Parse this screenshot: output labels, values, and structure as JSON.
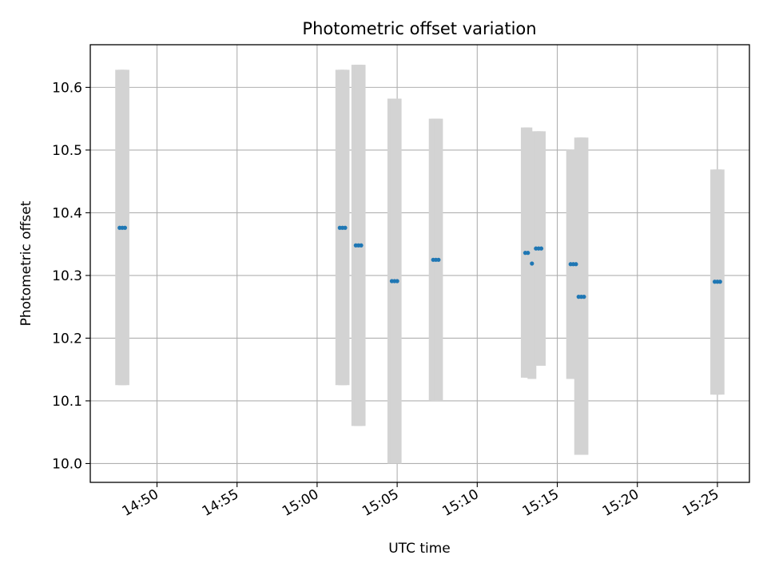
{
  "chart_data": {
    "type": "scatter",
    "title": "Photometric offset variation",
    "xlabel": "UTC time",
    "ylabel": "Photometric offset",
    "x_axis_type": "time",
    "xlim": [
      "14:45:50",
      "15:27:00"
    ],
    "ylim": [
      9.97,
      10.668
    ],
    "x_ticks": [
      "14:50",
      "14:55",
      "15:00",
      "15:05",
      "15:10",
      "15:15",
      "15:20",
      "15:25"
    ],
    "y_ticks": [
      "10.0",
      "10.1",
      "10.2",
      "10.3",
      "10.4",
      "10.5",
      "10.6"
    ],
    "grid": true,
    "marker_color": "#1f77b4",
    "errorbar_color": "#d3d3d3",
    "series": [
      {
        "points": [
          {
            "x": "14:47:40",
            "y": 10.376,
            "ylow": 10.125,
            "yhigh": 10.628
          },
          {
            "x": "14:47:50",
            "y": 10.376,
            "ylow": 10.125,
            "yhigh": 10.628
          },
          {
            "x": "14:48:00",
            "y": 10.376,
            "ylow": 10.125,
            "yhigh": 10.628
          },
          {
            "x": "15:01:25",
            "y": 10.376,
            "ylow": 10.125,
            "yhigh": 10.628
          },
          {
            "x": "15:01:35",
            "y": 10.376,
            "ylow": 10.125,
            "yhigh": 10.628
          },
          {
            "x": "15:01:45",
            "y": 10.376,
            "ylow": 10.125,
            "yhigh": 10.628
          },
          {
            "x": "15:02:25",
            "y": 10.348,
            "ylow": 10.06,
            "yhigh": 10.636
          },
          {
            "x": "15:02:35",
            "y": 10.348,
            "ylow": 10.06,
            "yhigh": 10.636
          },
          {
            "x": "15:02:45",
            "y": 10.348,
            "ylow": 10.06,
            "yhigh": 10.636
          },
          {
            "x": "15:04:40",
            "y": 10.291,
            "ylow": 10.0,
            "yhigh": 10.582
          },
          {
            "x": "15:04:50",
            "y": 10.291,
            "ylow": 10.0,
            "yhigh": 10.582
          },
          {
            "x": "15:05:00",
            "y": 10.291,
            "ylow": 10.0,
            "yhigh": 10.582
          },
          {
            "x": "15:07:15",
            "y": 10.325,
            "ylow": 10.1,
            "yhigh": 10.55
          },
          {
            "x": "15:07:25",
            "y": 10.325,
            "ylow": 10.1,
            "yhigh": 10.55
          },
          {
            "x": "15:07:35",
            "y": 10.325,
            "ylow": 10.1,
            "yhigh": 10.55
          },
          {
            "x": "15:13:00",
            "y": 10.336,
            "ylow": 10.137,
            "yhigh": 10.536
          },
          {
            "x": "15:13:10",
            "y": 10.336,
            "ylow": 10.137,
            "yhigh": 10.536
          },
          {
            "x": "15:13:25",
            "y": 10.319,
            "ylow": 10.135,
            "yhigh": 10.503
          },
          {
            "x": "15:13:40",
            "y": 10.343,
            "ylow": 10.156,
            "yhigh": 10.53
          },
          {
            "x": "15:13:50",
            "y": 10.343,
            "ylow": 10.156,
            "yhigh": 10.53
          },
          {
            "x": "15:14:00",
            "y": 10.343,
            "ylow": 10.156,
            "yhigh": 10.53
          },
          {
            "x": "15:15:50",
            "y": 10.318,
            "ylow": 10.135,
            "yhigh": 10.5
          },
          {
            "x": "15:16:00",
            "y": 10.318,
            "ylow": 10.135,
            "yhigh": 10.5
          },
          {
            "x": "15:16:10",
            "y": 10.318,
            "ylow": 10.135,
            "yhigh": 10.5
          },
          {
            "x": "15:16:20",
            "y": 10.266,
            "ylow": 10.014,
            "yhigh": 10.52
          },
          {
            "x": "15:16:30",
            "y": 10.266,
            "ylow": 10.014,
            "yhigh": 10.52
          },
          {
            "x": "15:16:40",
            "y": 10.266,
            "ylow": 10.014,
            "yhigh": 10.52
          },
          {
            "x": "15:24:50",
            "y": 10.29,
            "ylow": 10.11,
            "yhigh": 10.469
          },
          {
            "x": "15:25:00",
            "y": 10.29,
            "ylow": 10.11,
            "yhigh": 10.469
          },
          {
            "x": "15:25:10",
            "y": 10.29,
            "ylow": 10.11,
            "yhigh": 10.469
          }
        ]
      }
    ]
  }
}
